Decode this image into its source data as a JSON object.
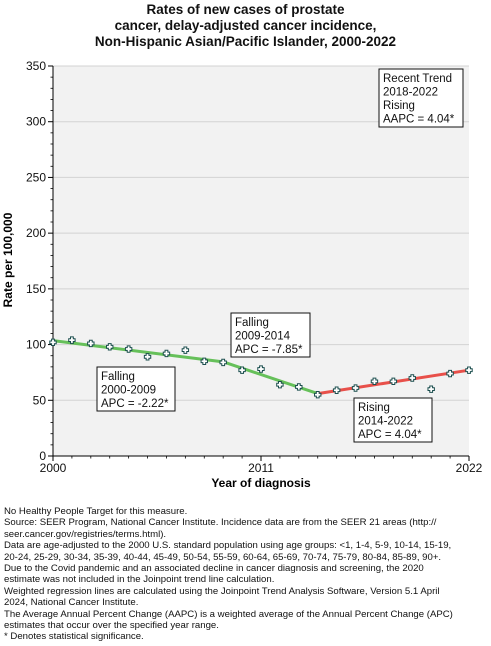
{
  "title_lines": [
    "Rates of new cases of prostate",
    "cancer, delay-adjusted cancer incidence,",
    "Non-Hispanic Asian/Pacific Islander,  2000-2022"
  ],
  "chart_data": {
    "type": "line",
    "xlabel": "Year of diagnosis",
    "ylabel": "Rate per 100,000",
    "xlim": [
      2000,
      2022
    ],
    "ylim": [
      0,
      350
    ],
    "x_ticks": [
      2000,
      2011,
      2022
    ],
    "x_tick_labels": [
      "2000",
      "2011",
      "2022"
    ],
    "y_ticks": [
      0,
      50,
      100,
      150,
      200,
      250,
      300,
      350
    ],
    "y_tick_labels": [
      "0",
      "50",
      "100",
      "150",
      "200",
      "250",
      "300",
      "350"
    ],
    "grid": "horizontal",
    "background": "#f2f2f2",
    "observed": {
      "marker": "plus",
      "color": "#1a4d4d",
      "x": [
        2000,
        2001,
        2002,
        2003,
        2004,
        2005,
        2006,
        2007,
        2008,
        2009,
        2010,
        2011,
        2012,
        2013,
        2014,
        2015,
        2016,
        2017,
        2018,
        2019,
        2020,
        2021,
        2022
      ],
      "y": [
        102,
        104,
        101,
        98,
        96,
        89,
        92,
        95,
        85,
        84,
        77,
        78,
        64,
        62,
        55,
        59,
        61,
        67,
        67,
        70,
        60,
        74,
        77
      ]
    },
    "trend_segments": [
      {
        "x": [
          2000,
          2009
        ],
        "y": [
          103.5,
          84.5
        ],
        "color": "#66c05a"
      },
      {
        "x": [
          2009,
          2014
        ],
        "y": [
          84.5,
          56
        ],
        "color": "#66c05a"
      },
      {
        "x": [
          2014,
          2022
        ],
        "y": [
          56,
          77
        ],
        "color": "#e8504a"
      }
    ],
    "annotations": [
      {
        "lines": [
          "Falling",
          "2000-2009",
          "APC = -2.22*"
        ],
        "anchor": "segment-1"
      },
      {
        "lines": [
          "Falling",
          "2009-2014",
          "APC = -7.85*"
        ],
        "anchor": "segment-2"
      },
      {
        "lines": [
          "Rising",
          "2014-2022",
          "APC =  4.04*"
        ],
        "anchor": "segment-3"
      },
      {
        "lines": [
          "Recent Trend",
          "2018-2022",
          "Rising",
          "AAPC =  4.04*"
        ],
        "anchor": "top-right"
      }
    ]
  },
  "footnotes": [
    "No Healthy People Target for this measure.",
    "Source: SEER Program, National Cancer Institute. Incidence data are from the SEER 21 areas (http://",
    "seer.cancer.gov/registries/terms.html).",
    "Data are age-adjusted to the 2000 U.S. standard population using age groups: <1, 1-4, 5-9, 10-14, 15-19,",
    "20-24, 25-29, 30-34, 35-39, 40-44, 45-49, 50-54, 55-59, 60-64, 65-69, 70-74, 75-79, 80-84, 85-89, 90+.",
    "Due to the Covid pandemic and an associated decline in cancer diagnosis and screening, the 2020",
    "estimate was not included in the Joinpoint trend line calculation.",
    "Weighted regression lines are calculated using the Joinpoint Trend Analysis Software, Version 5.1 April",
    "2024, National Cancer Institute.",
    "The Average Annual Percent Change (AAPC) is a weighted average of the Annual Percent Change (APC)",
    "estimates that occur over the specified year range.",
    "* Denotes statistical significance."
  ]
}
